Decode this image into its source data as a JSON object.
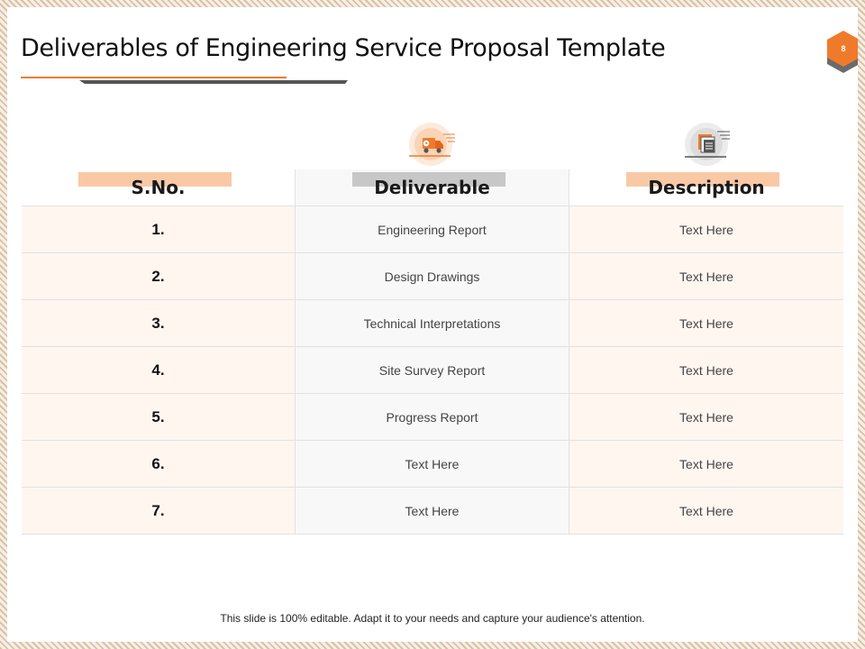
{
  "slide": {
    "title": "Deliverables of Engineering Service Proposal Template",
    "page_number": "8",
    "footer": "This slide is 100% editable. Adapt it to your needs and capture your audience's attention."
  },
  "colors": {
    "accent": "#f07a2c",
    "accent_light": "#f9c9a6",
    "grey_bar": "#c7c7c7",
    "row_tint": "#fff6f0"
  },
  "table": {
    "columns": [
      {
        "label": "S.No.",
        "icon": ""
      },
      {
        "label": "Deliverable",
        "icon": "delivery-truck-icon"
      },
      {
        "label": "Description",
        "icon": "document-list-icon"
      }
    ],
    "rows": [
      {
        "sno": "1.",
        "deliverable": "Engineering Report",
        "description": "Text Here"
      },
      {
        "sno": "2.",
        "deliverable": "Design Drawings",
        "description": "Text Here"
      },
      {
        "sno": "3.",
        "deliverable": "Technical Interpretations",
        "description": "Text Here"
      },
      {
        "sno": "4.",
        "deliverable": "Site Survey Report",
        "description": "Text Here"
      },
      {
        "sno": "5.",
        "deliverable": "Progress Report",
        "description": "Text Here"
      },
      {
        "sno": "6.",
        "deliverable": "Text Here",
        "description": "Text Here"
      },
      {
        "sno": "7.",
        "deliverable": "Text Here",
        "description": "Text Here"
      }
    ]
  }
}
